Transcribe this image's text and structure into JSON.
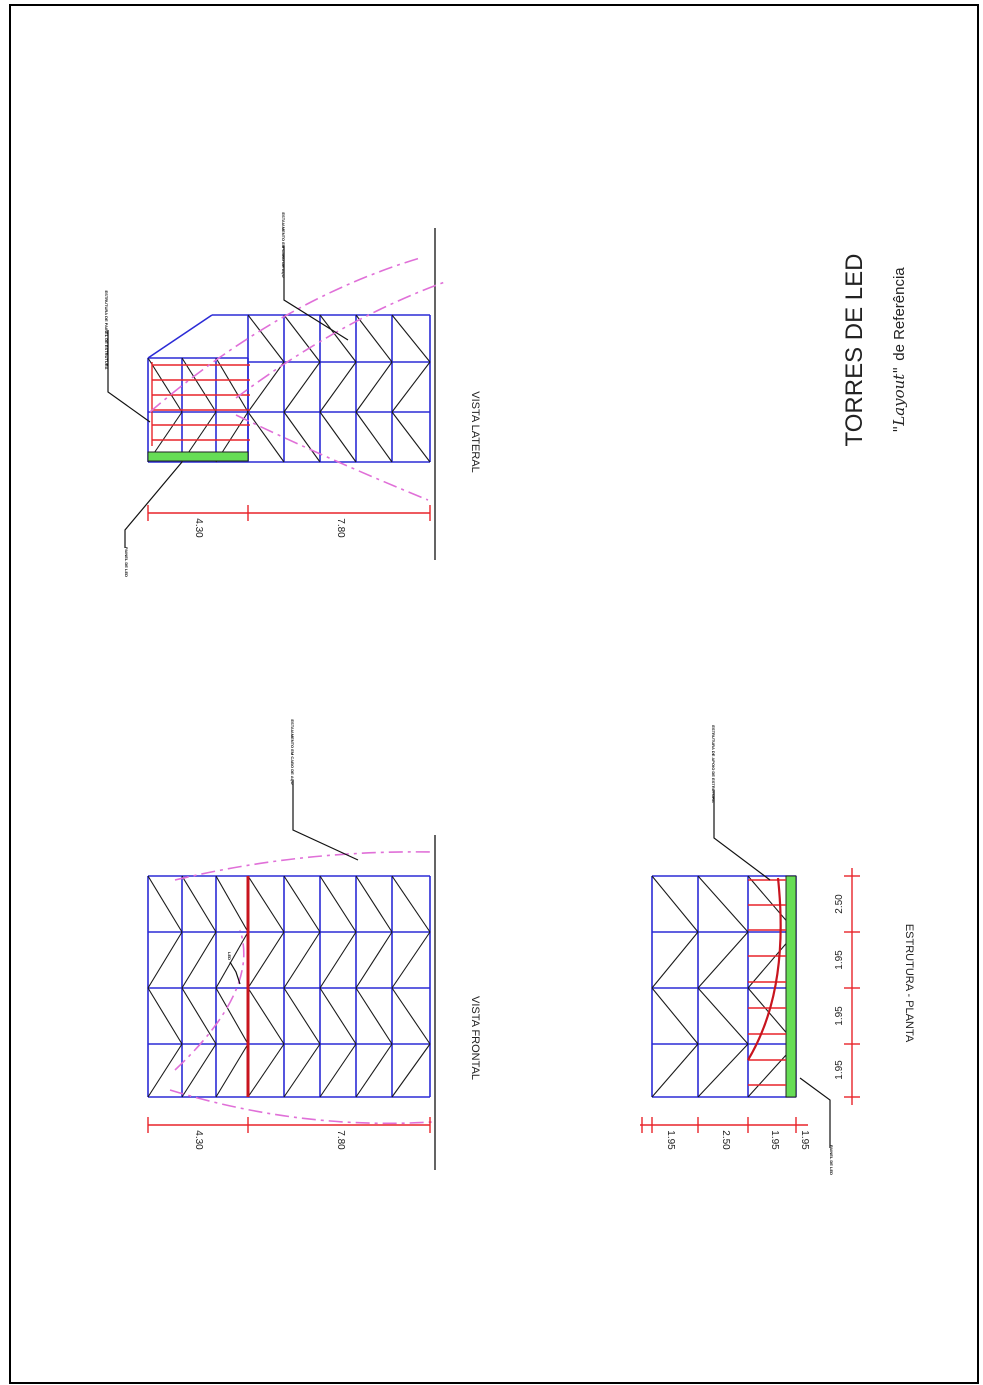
{
  "title": {
    "main": "TORRES DE LED",
    "sub_italic": "\"Layout\"",
    "sub_rest": "de Referência"
  },
  "views": {
    "lateral": {
      "label": "VISTA LATERAL",
      "dims": [
        "4.30",
        "7.80"
      ],
      "labels": [
        "PAINEL DE LED",
        "ESTRUTURA DE PAINEL DE ESTRUTURA",
        "ESTAIAMENTO EM CABO DE AÇO"
      ]
    },
    "frontal": {
      "label": "VISTA FRONTAL",
      "dims": [
        "4.30",
        "7.80"
      ],
      "labels": [
        "LED",
        "ESTAIAMENTO EM CABO DE AÇO"
      ]
    },
    "planta": {
      "label": "ESTRUTURA  -  PLANTA",
      "dims_vertical": [
        "1.95",
        "1.95",
        "1.95",
        "2.50"
      ],
      "dims_horizontal": [
        "1.95",
        "2.50",
        "1.95",
        "1.95"
      ],
      "labels": [
        "PAINEL DE LED",
        "ESTRUTURA DE APOIO DE ESTRUTURA"
      ]
    }
  },
  "colors": {
    "structure": "#2b2bd6",
    "dimension": "#e8242a",
    "led_panel": "#66dd55",
    "guy_wire": "#e070d8"
  }
}
